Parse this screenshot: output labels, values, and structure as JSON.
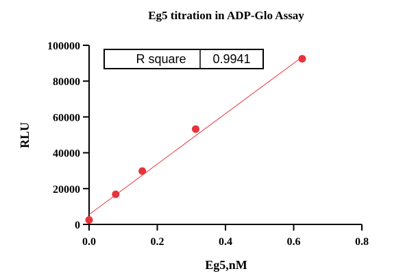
{
  "chart_data": {
    "type": "scatter",
    "title": "Eg5 titration in ADP-Glo Assay",
    "xlabel": "Eg5,nM",
    "ylabel": "RLU",
    "xlim": [
      0,
      0.8
    ],
    "ylim": [
      0,
      100000
    ],
    "x_ticks": [
      "0.0",
      "0.2",
      "0.4",
      "0.6",
      "0.8"
    ],
    "y_ticks": [
      "0",
      "20000",
      "40000",
      "60000",
      "80000",
      "100000"
    ],
    "x_tick_values": [
      0,
      0.2,
      0.4,
      0.6,
      0.8
    ],
    "y_tick_values": [
      0,
      20000,
      40000,
      60000,
      80000,
      100000
    ],
    "series": [
      {
        "x": [
          0,
          0.078,
          0.156,
          0.3125,
          0.625
        ],
        "y": [
          2500,
          16800,
          29800,
          53200,
          92500
        ],
        "color": "#e8333a"
      }
    ],
    "fit_line": {
      "x": [
        0,
        0.625
      ],
      "y": [
        5500,
        93500
      ],
      "color": "#e8333a"
    },
    "annotation_table": {
      "label": "R square",
      "value": "0.9941"
    },
    "grid": false
  }
}
